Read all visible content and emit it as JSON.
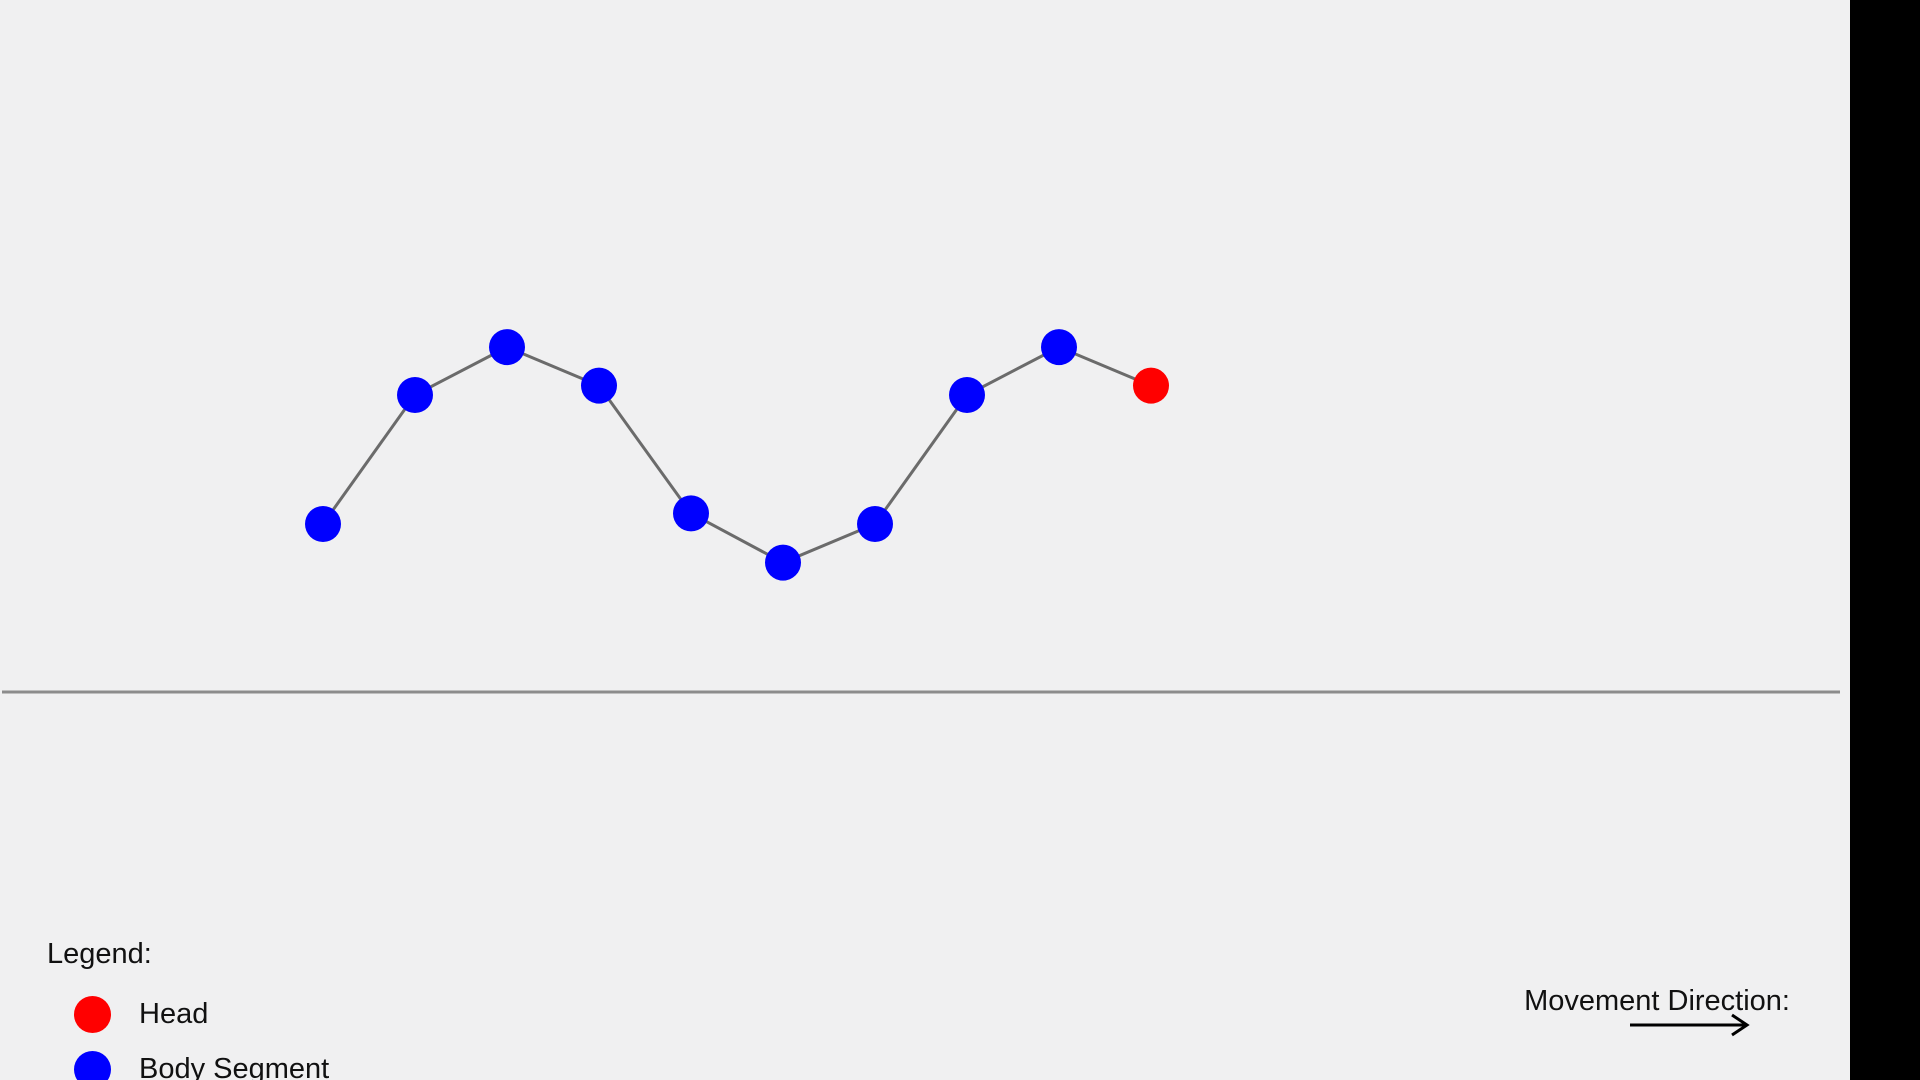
{
  "colors": {
    "head": "#ff0000",
    "body": "#0000ff",
    "link": "#6b6b6b",
    "ground": "#8c8c8c",
    "background": "#f0f0f1"
  },
  "creature": {
    "segments": [
      {
        "type": "body",
        "x": 0,
        "y": 0.0
      },
      {
        "type": "body",
        "x": 1,
        "y": 0.97
      },
      {
        "type": "body",
        "x": 2,
        "y": 1.33
      },
      {
        "type": "body",
        "x": 3,
        "y": 1.04
      },
      {
        "type": "body",
        "x": 4,
        "y": 0.08
      },
      {
        "type": "body",
        "x": 5,
        "y": -0.29
      },
      {
        "type": "body",
        "x": 6,
        "y": 0.0
      },
      {
        "type": "body",
        "x": 7,
        "y": 0.97
      },
      {
        "type": "body",
        "x": 8,
        "y": 1.33
      },
      {
        "type": "head",
        "x": 9,
        "y": 1.04
      }
    ]
  },
  "legend": {
    "title": "Legend:",
    "items": [
      {
        "label": "Head",
        "color": "#ff0000"
      },
      {
        "label": "Body Segment",
        "color": "#0000ff"
      }
    ]
  },
  "direction": {
    "label": "Movement Direction:",
    "arrow_icon": "right-arrow-icon"
  }
}
